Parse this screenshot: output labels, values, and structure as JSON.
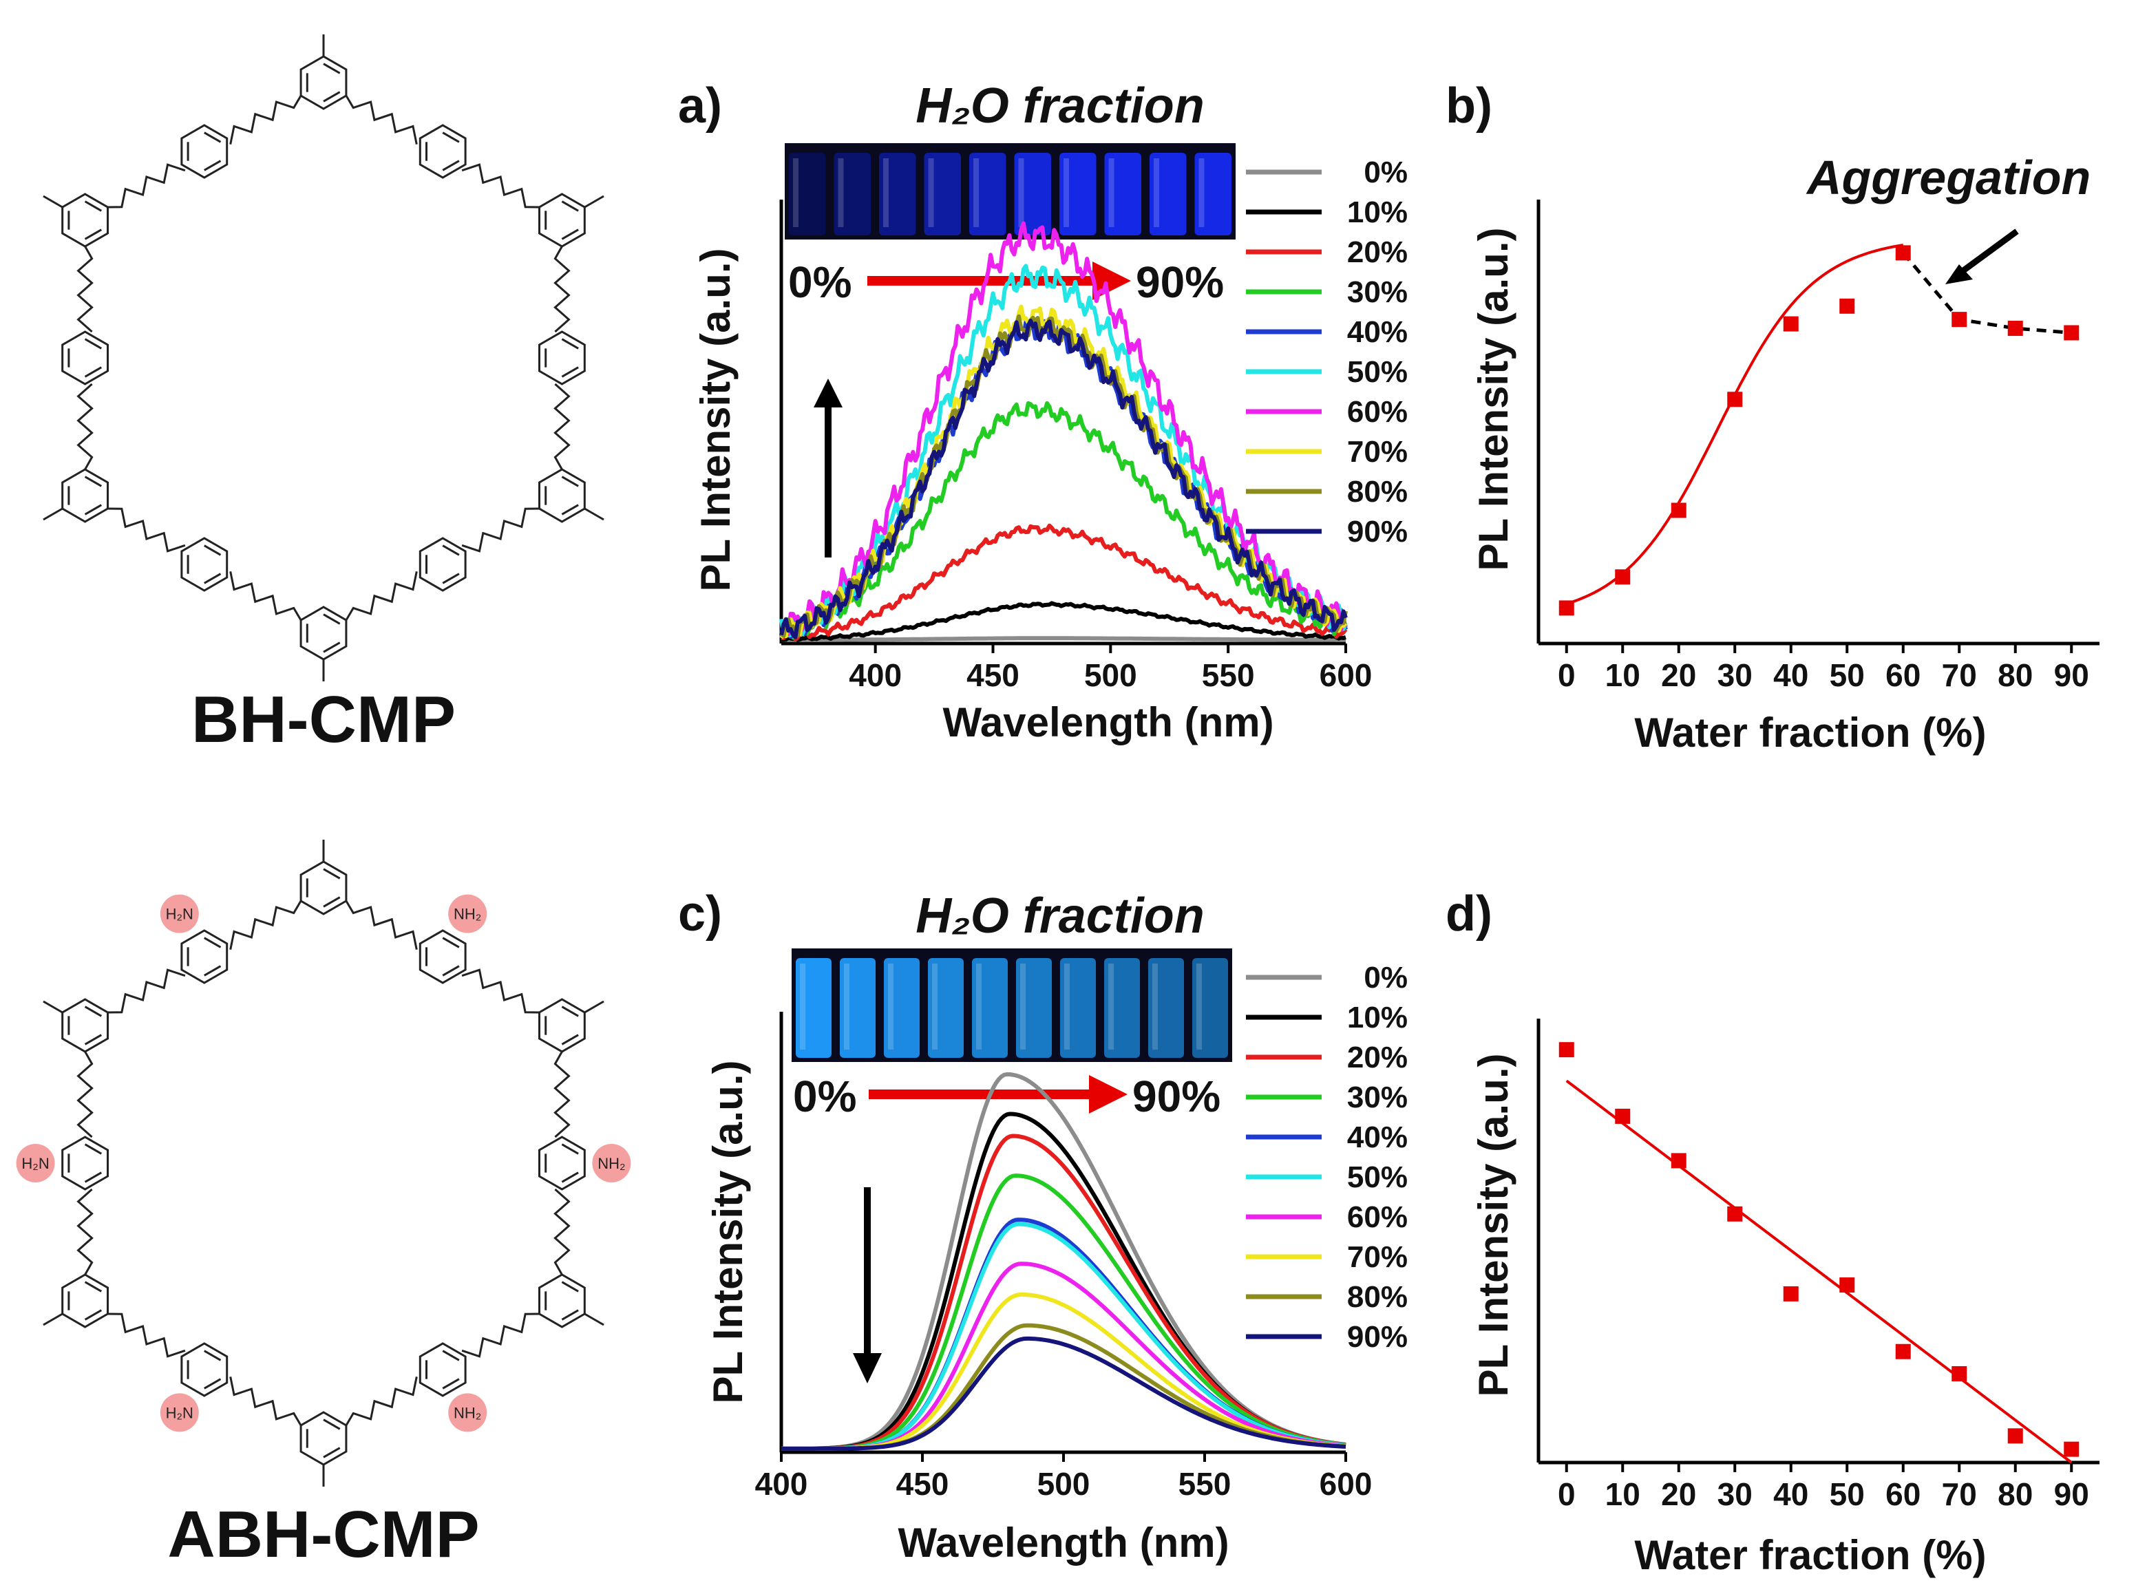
{
  "molecules": {
    "top": {
      "name": "BH-CMP",
      "substituent": ""
    },
    "bottom": {
      "name": "ABH-CMP",
      "substituent": "NH₂",
      "substituent_alt": "H₂N"
    }
  },
  "legend_labels": [
    "0%",
    "10%",
    "20%",
    "30%",
    "40%",
    "50%",
    "60%",
    "70%",
    "80%",
    "90%"
  ],
  "colors": {
    "series": [
      "#8c8c8c",
      "#000000",
      "#e61e1e",
      "#22cc22",
      "#1e3cd2",
      "#22e6e6",
      "#ee22ee",
      "#f0e61e",
      "#8c8c1e",
      "#14147a"
    ],
    "accent": "#e60000",
    "vial_a": "#1e28c8",
    "vial_c": "#1e8cf0"
  },
  "chart_data": [
    {
      "type": "line",
      "panel": "a)",
      "title": "H₂O fraction",
      "photo_start": "0%",
      "photo_end": "90%",
      "xlabel": "Wavelength (nm)",
      "ylabel": "PL Intensity (a.u.)",
      "xlim": [
        360,
        600
      ],
      "ylim": [
        0,
        1.0
      ],
      "xticks": [
        "400",
        "450",
        "500",
        "550",
        "600"
      ],
      "trend": "up",
      "series": [
        {
          "name": "0%",
          "peak": 470,
          "amp": 0.004
        },
        {
          "name": "10%",
          "peak": 472,
          "amp": 0.08
        },
        {
          "name": "20%",
          "peak": 468,
          "amp": 0.25
        },
        {
          "name": "30%",
          "peak": 466,
          "amp": 0.52
        },
        {
          "name": "40%",
          "peak": 467,
          "amp": 0.7
        },
        {
          "name": "50%",
          "peak": 467,
          "amp": 0.82
        },
        {
          "name": "60%",
          "peak": 466,
          "amp": 0.91
        },
        {
          "name": "70%",
          "peak": 467,
          "amp": 0.73
        },
        {
          "name": "80%",
          "peak": 467,
          "amp": 0.71
        },
        {
          "name": "90%",
          "peak": 467,
          "amp": 0.7
        }
      ]
    },
    {
      "type": "scatter",
      "panel": "b)",
      "annotation": "Aggregation",
      "xlabel": "Water fraction (%)",
      "ylabel": "PL Intensity (a.u.)",
      "xlim": [
        -5,
        95
      ],
      "ylim": [
        0,
        1.0
      ],
      "x": [
        0,
        10,
        20,
        30,
        40,
        50,
        60,
        70,
        80,
        90
      ],
      "y": [
        0.08,
        0.15,
        0.3,
        0.55,
        0.72,
        0.76,
        0.88,
        0.73,
        0.71,
        0.7
      ],
      "xticks": [
        "0",
        "10",
        "20",
        "30",
        "40",
        "50",
        "60",
        "70",
        "80",
        "90"
      ]
    },
    {
      "type": "line",
      "panel": "c)",
      "title": "H₂O fraction",
      "photo_start": "0%",
      "photo_end": "90%",
      "xlabel": "Wavelength (nm)",
      "ylabel": "PL Intensity (a.u.)",
      "xlim": [
        400,
        600
      ],
      "ylim": [
        0,
        1.0
      ],
      "xticks": [
        "400",
        "450",
        "500",
        "550",
        "600"
      ],
      "trend": "down",
      "series": [
        {
          "name": "0%",
          "peak": 480,
          "amp": 0.85
        },
        {
          "name": "10%",
          "peak": 481,
          "amp": 0.76
        },
        {
          "name": "20%",
          "peak": 482,
          "amp": 0.71
        },
        {
          "name": "30%",
          "peak": 483,
          "amp": 0.62
        },
        {
          "name": "40%",
          "peak": 484,
          "amp": 0.52
        },
        {
          "name": "50%",
          "peak": 484,
          "amp": 0.51
        },
        {
          "name": "60%",
          "peak": 485,
          "amp": 0.42
        },
        {
          "name": "70%",
          "peak": 485,
          "amp": 0.35
        },
        {
          "name": "80%",
          "peak": 487,
          "amp": 0.28
        },
        {
          "name": "90%",
          "peak": 487,
          "amp": 0.25
        }
      ]
    },
    {
      "type": "scatter",
      "panel": "d)",
      "xlabel": "Water fraction (%)",
      "ylabel": "PL Intensity (a.u.)",
      "xlim": [
        -5,
        95
      ],
      "ylim": [
        0,
        1.0
      ],
      "x": [
        0,
        10,
        20,
        30,
        40,
        50,
        60,
        70,
        80,
        90
      ],
      "y": [
        0.93,
        0.78,
        0.68,
        0.56,
        0.38,
        0.4,
        0.25,
        0.2,
        0.06,
        0.03
      ],
      "xticks": [
        "0",
        "10",
        "20",
        "30",
        "40",
        "50",
        "60",
        "70",
        "80",
        "90"
      ]
    }
  ]
}
